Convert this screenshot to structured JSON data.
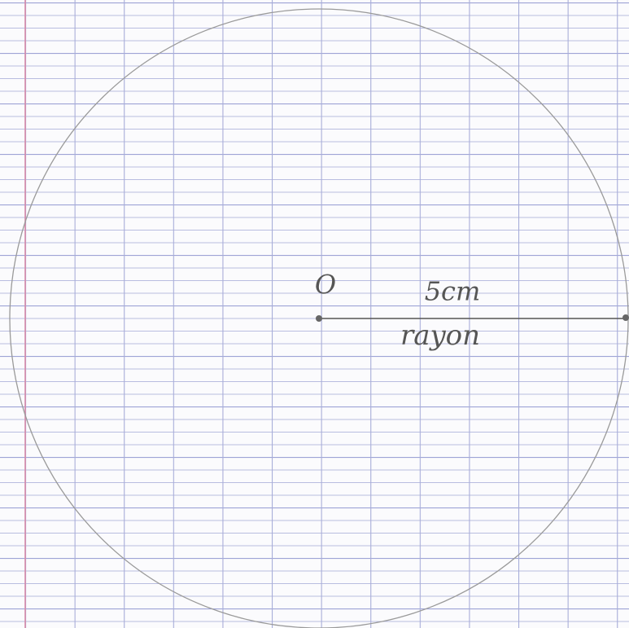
{
  "labels": {
    "center": "O",
    "length": "5cm",
    "name": "rayon"
  }
}
